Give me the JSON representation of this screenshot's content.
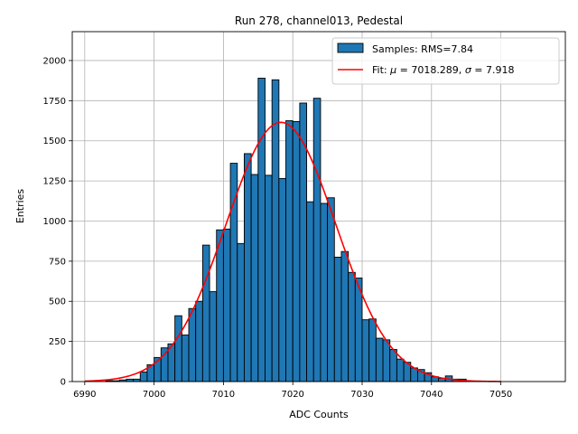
{
  "chart_data": {
    "type": "bar",
    "title": "Run 278, channel013, Pedestal",
    "xlabel": "ADC Counts",
    "ylabel": "Entries",
    "xlim": [
      6988.2,
      7059.3
    ],
    "ylim": [
      0,
      2180
    ],
    "xticks": [
      6990,
      7000,
      7010,
      7020,
      7030,
      7040,
      7050
    ],
    "yticks": [
      0,
      250,
      500,
      750,
      1000,
      1250,
      1500,
      1750,
      2000
    ],
    "grid": true,
    "legend_position": "top-right",
    "bin_width": 1,
    "bins_start": [
      6993,
      6994,
      6995,
      6996,
      6997,
      6998,
      6999,
      7000,
      7001,
      7002,
      7003,
      7004,
      7005,
      7006,
      7007,
      7008,
      7009,
      7010,
      7011,
      7012,
      7013,
      7014,
      7015,
      7016,
      7017,
      7018,
      7019,
      7020,
      7021,
      7022,
      7023,
      7024,
      7025,
      7026,
      7027,
      7028,
      7029,
      7030,
      7031,
      7032,
      7033,
      7034,
      7035,
      7036,
      7037,
      7038,
      7039,
      7040,
      7041,
      7042,
      7043,
      7044
    ],
    "counts": [
      5,
      5,
      10,
      15,
      15,
      60,
      105,
      150,
      210,
      235,
      410,
      290,
      455,
      500,
      850,
      560,
      945,
      950,
      1360,
      860,
      1420,
      1290,
      1890,
      1285,
      1880,
      1265,
      1625,
      1620,
      1735,
      1120,
      1765,
      1110,
      1145,
      775,
      810,
      680,
      645,
      385,
      390,
      270,
      260,
      200,
      140,
      120,
      85,
      75,
      55,
      30,
      20,
      35,
      15,
      15
    ],
    "bar_color": "#1f77b4",
    "fit_color": "#ff0000",
    "fit": {
      "mu": 7018.289,
      "sigma": 7.918,
      "amplitude": 1615,
      "x_range": [
        6990,
        7050
      ]
    },
    "legend": {
      "samples_label": "Samples: RMS=7.84",
      "fit_label_prefix": "Fit: ",
      "fit_mu_symbol": "μ",
      "fit_mu_text": " = 7018.289, ",
      "fit_sigma_symbol": "σ",
      "fit_sigma_text": " = 7.918"
    }
  }
}
